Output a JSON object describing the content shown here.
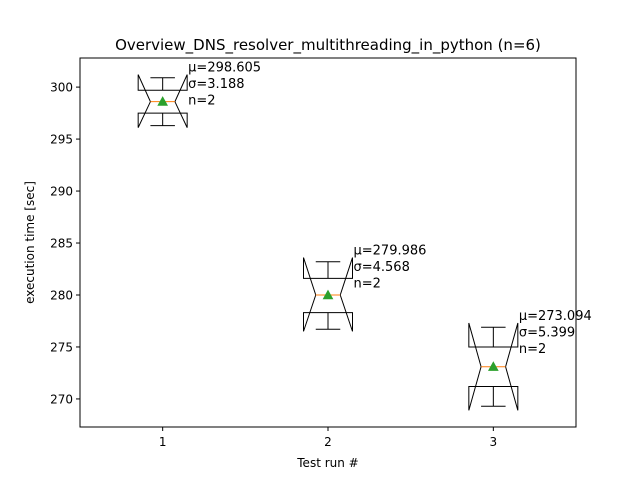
{
  "chart_data": {
    "type": "boxplot",
    "title": "Overview_DNS_resolver_multithreading_in_python (n=6)",
    "xlabel": "Test run #",
    "ylabel": "execution time [sec]",
    "categories": [
      "1",
      "2",
      "3"
    ],
    "xlim": [
      0.5,
      3.5
    ],
    "ylim": [
      267.3,
      302.8
    ],
    "yticks": [
      270,
      275,
      280,
      285,
      290,
      295,
      300
    ],
    "notched": true,
    "grid": false,
    "boxes": [
      {
        "x": 1,
        "mean": 298.605,
        "std": 3.188,
        "n": 2,
        "median": 298.6,
        "q1": 297.5,
        "q3": 299.7,
        "whisker_low": 296.3,
        "whisker_high": 300.9,
        "notch_low": 296.1,
        "notch_high": 301.2,
        "annotation": [
          "μ=298.605",
          "σ=3.188",
          "n=2"
        ]
      },
      {
        "x": 2,
        "mean": 279.986,
        "std": 4.568,
        "n": 2,
        "median": 280.0,
        "q1": 278.3,
        "q3": 281.6,
        "whisker_low": 276.7,
        "whisker_high": 283.2,
        "notch_low": 276.5,
        "notch_high": 283.6,
        "annotation": [
          "μ=279.986",
          "σ=4.568",
          "n=2"
        ]
      },
      {
        "x": 3,
        "mean": 273.094,
        "std": 5.399,
        "n": 2,
        "median": 273.1,
        "q1": 271.2,
        "q3": 275.0,
        "whisker_low": 269.3,
        "whisker_high": 276.9,
        "notch_low": 268.9,
        "notch_high": 277.3,
        "annotation": [
          "μ=273.094",
          "σ=5.399",
          "n=2"
        ]
      }
    ],
    "colors": {
      "box": "#000000",
      "median": "#ff7f0e",
      "mean_marker": "#2ca02c"
    }
  }
}
